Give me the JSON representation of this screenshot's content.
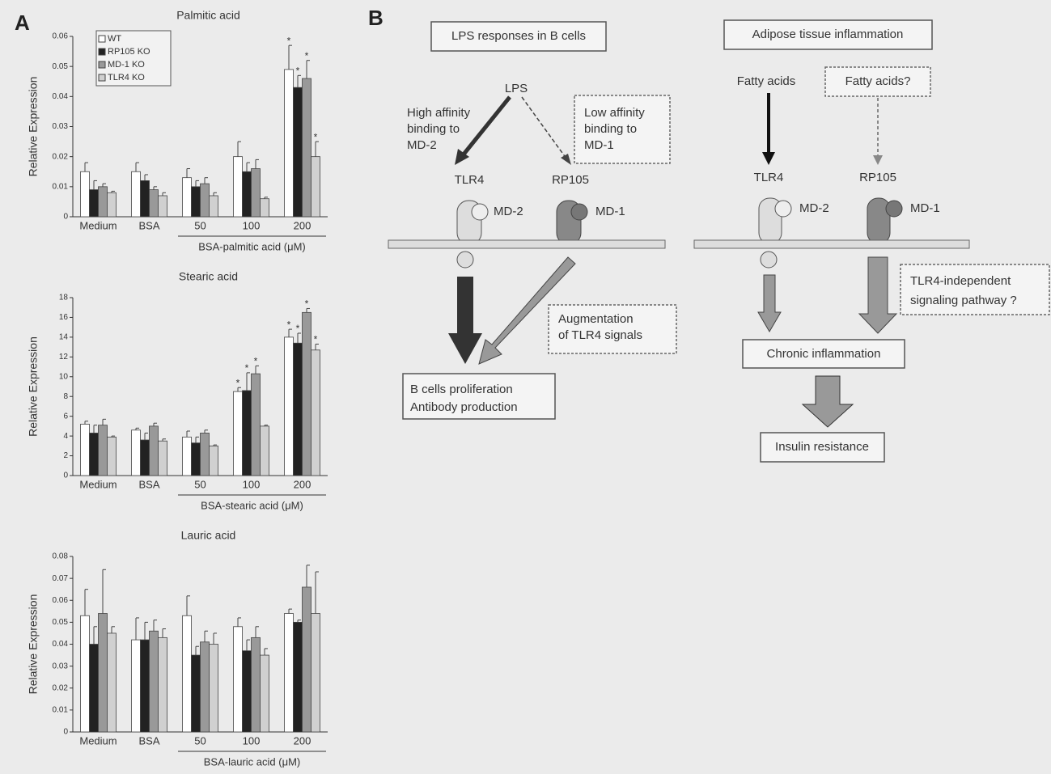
{
  "panel_a_label": "A",
  "chart_data": [
    {
      "type": "bar",
      "title": "Palmitic acid",
      "y_label": "Relative Expression",
      "group_label": "BSA-palmitic acid (μM)",
      "categories": [
        "Medium",
        "BSA",
        "50",
        "100",
        "200"
      ],
      "ylim": [
        0,
        0.06
      ],
      "yticks": [
        0,
        0.01,
        0.02,
        0.03,
        0.04,
        0.05,
        0.06
      ],
      "legend": true,
      "series": [
        {
          "name": "WT",
          "color": "#ffffff",
          "values": [
            0.015,
            0.015,
            0.013,
            0.02,
            0.049
          ],
          "errors": [
            0.003,
            0.003,
            0.003,
            0.005,
            0.008
          ],
          "stars": [
            null,
            null,
            null,
            null,
            "*"
          ]
        },
        {
          "name": "RP105 KO",
          "color": "#222222",
          "values": [
            0.009,
            0.012,
            0.01,
            0.015,
            0.043
          ],
          "errors": [
            0.003,
            0.002,
            0.002,
            0.003,
            0.004
          ],
          "stars": [
            null,
            null,
            null,
            null,
            "*"
          ]
        },
        {
          "name": "MD-1 KO",
          "color": "#999999",
          "values": [
            0.01,
            0.009,
            0.011,
            0.016,
            0.046
          ],
          "errors": [
            0.001,
            0.001,
            0.002,
            0.003,
            0.006
          ],
          "stars": [
            null,
            null,
            null,
            null,
            "*"
          ]
        },
        {
          "name": "TLR4 KO",
          "color": "#d0d0d0",
          "values": [
            0.008,
            0.007,
            0.007,
            0.006,
            0.02
          ],
          "errors": [
            0.0005,
            0.001,
            0.001,
            0.0005,
            0.005
          ],
          "stars": [
            null,
            null,
            null,
            null,
            "*"
          ]
        }
      ]
    },
    {
      "type": "bar",
      "title": "Stearic acid",
      "y_label": "Relative Expression",
      "group_label": "BSA-stearic acid (μM)",
      "categories": [
        "Medium",
        "BSA",
        "50",
        "100",
        "200"
      ],
      "ylim": [
        0,
        18
      ],
      "yticks": [
        0,
        2,
        4,
        6,
        8,
        10,
        12,
        14,
        16,
        18
      ],
      "series": [
        {
          "name": "WT",
          "color": "#ffffff",
          "values": [
            5.2,
            4.6,
            3.9,
            8.5,
            14
          ],
          "errors": [
            0.3,
            0.2,
            0.6,
            0.4,
            0.8
          ],
          "stars": [
            null,
            null,
            null,
            "*",
            "*"
          ]
        },
        {
          "name": "RP105 KO",
          "color": "#222222",
          "values": [
            4.3,
            3.6,
            3.3,
            8.6,
            13.4
          ],
          "errors": [
            0.8,
            0.7,
            0.6,
            1.8,
            1.0
          ],
          "stars": [
            null,
            null,
            null,
            "*",
            "*"
          ]
        },
        {
          "name": "MD-1 KO",
          "color": "#999999",
          "values": [
            5.1,
            5.0,
            4.3,
            10.3,
            16.5
          ],
          "errors": [
            0.6,
            0.3,
            0.3,
            0.8,
            0.4
          ],
          "stars": [
            null,
            null,
            null,
            "*",
            "*"
          ]
        },
        {
          "name": "TLR4 KO",
          "color": "#d0d0d0",
          "values": [
            3.9,
            3.5,
            3.0,
            5.0,
            12.7
          ],
          "errors": [
            0.1,
            0.2,
            0.1,
            0.1,
            0.6
          ],
          "stars": [
            null,
            null,
            null,
            null,
            "*"
          ]
        }
      ]
    },
    {
      "type": "bar",
      "title": "Lauric acid",
      "y_label": "Relative Expression",
      "group_label": "BSA-lauric acid (μM)",
      "categories": [
        "Medium",
        "BSA",
        "50",
        "100",
        "200"
      ],
      "ylim": [
        0,
        0.08
      ],
      "yticks": [
        0,
        0.01,
        0.02,
        0.03,
        0.04,
        0.05,
        0.06,
        0.07,
        0.08
      ],
      "series": [
        {
          "name": "WT",
          "color": "#ffffff",
          "values": [
            0.053,
            0.042,
            0.053,
            0.048,
            0.054
          ],
          "errors": [
            0.012,
            0.01,
            0.009,
            0.004,
            0.002
          ]
        },
        {
          "name": "RP105 KO",
          "color": "#222222",
          "values": [
            0.04,
            0.042,
            0.035,
            0.037,
            0.05
          ],
          "errors": [
            0.008,
            0.008,
            0.004,
            0.005,
            0.001
          ]
        },
        {
          "name": "MD-1 KO",
          "color": "#999999",
          "values": [
            0.054,
            0.046,
            0.041,
            0.043,
            0.066
          ],
          "errors": [
            0.02,
            0.005,
            0.005,
            0.005,
            0.01
          ]
        },
        {
          "name": "TLR4 KO",
          "color": "#d0d0d0",
          "values": [
            0.045,
            0.043,
            0.04,
            0.035,
            0.054
          ],
          "errors": [
            0.003,
            0.004,
            0.005,
            0.003,
            0.019
          ]
        }
      ]
    }
  ],
  "panel_b": {
    "label": "B",
    "left": {
      "title": "LPS responses in B cells",
      "ligand": "LPS",
      "high_affinity": [
        "High affinity",
        "binding to",
        "MD-2"
      ],
      "low_affinity": [
        "Low affinity",
        "binding to",
        "MD-1"
      ],
      "tlr4": "TLR4",
      "rp105": "RP105",
      "md2": "MD-2",
      "md1": "MD-1",
      "augmentation": [
        "Augmentation",
        "of TLR4 signals"
      ],
      "outcome": [
        "B cells proliferation",
        "Antibody production"
      ]
    },
    "right": {
      "title": "Adipose tissue inflammation",
      "ligand": "Fatty acids",
      "ligand_question": "Fatty acids?",
      "tlr4": "TLR4",
      "rp105": "RP105",
      "md2": "MD-2",
      "md1": "MD-1",
      "independent": [
        "TLR4-independent",
        "signaling pathway ?"
      ],
      "inflammation": "Chronic inflammation",
      "outcome": "Insulin resistance"
    }
  }
}
